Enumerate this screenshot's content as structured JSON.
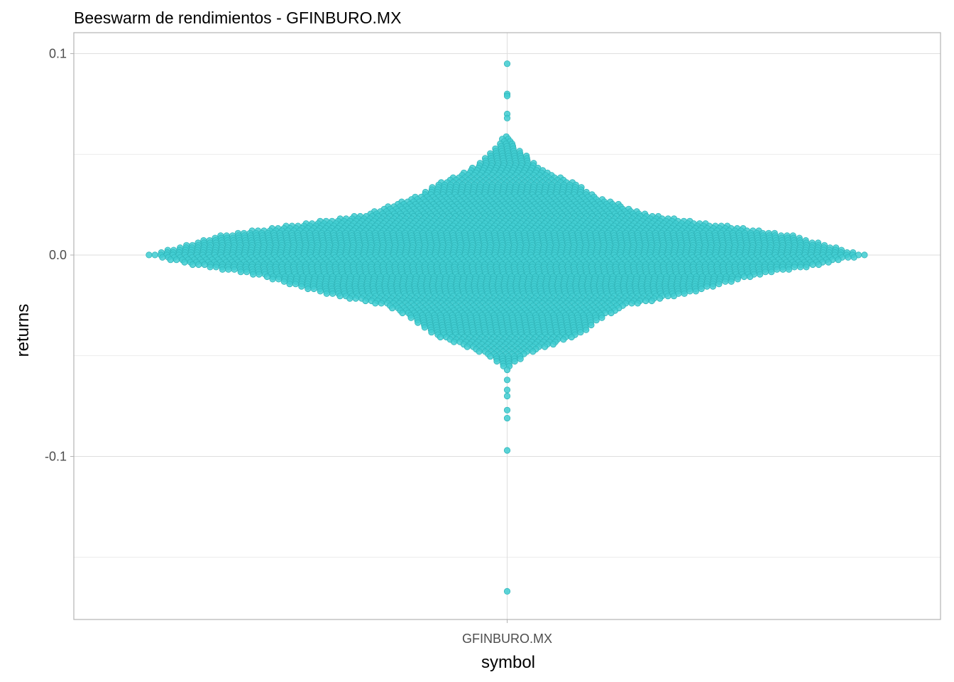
{
  "chart_data": {
    "type": "scatter",
    "subtype": "beeswarm",
    "title": "Beeswarm de rendimientos - GFINBURO.MX",
    "xlabel": "symbol",
    "ylabel": "returns",
    "categories": [
      "GFINBURO.MX"
    ],
    "y_ticks": [
      0.1,
      0.0,
      -0.1
    ],
    "y_tick_labels": [
      "0.1",
      "0.0",
      "-0.1"
    ],
    "ylim": [
      -0.181,
      0.1
    ],
    "grid": true,
    "legend": "none",
    "point_color": "#40CDD1",
    "series": [
      {
        "category": "GFINBURO.MX",
        "outliers": [
          0.095,
          0.08,
          0.079,
          0.07,
          0.068,
          -0.057,
          -0.062,
          -0.067,
          -0.07,
          -0.077,
          -0.081,
          -0.097,
          -0.167
        ],
        "bulk_distribution": {
          "center": 0.0,
          "approx_range": [
            -0.055,
            0.06
          ],
          "approx_count": 1750
        }
      }
    ]
  }
}
